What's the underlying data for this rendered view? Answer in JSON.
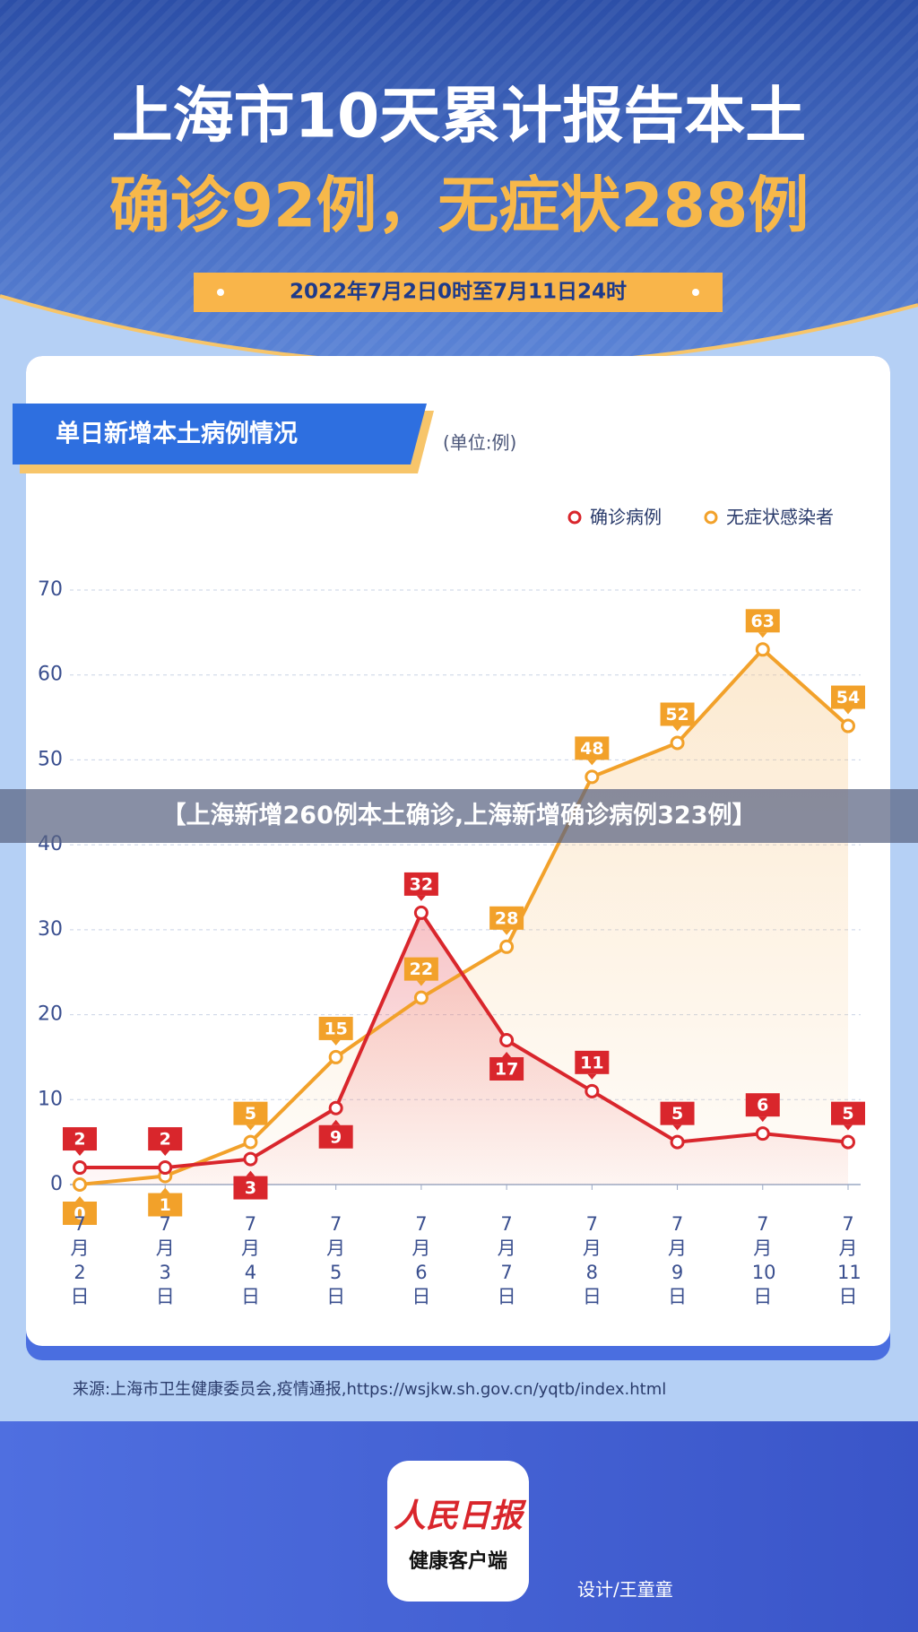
{
  "header": {
    "title_line1": "上海市10天累计报告本土",
    "title_line2": "确诊92例，无症状288例",
    "date_range": "2022年7月2日0时至7月11日24时"
  },
  "overlay_caption": "【上海新增260例本土确诊,上海新增确诊病例323例】",
  "chart_data": {
    "type": "line",
    "title": "单日新增本土病例情况",
    "unit": "(单位:例)",
    "categories": [
      "7月2日",
      "7月3日",
      "7月4日",
      "7月5日",
      "7月6日",
      "7月7日",
      "7月8日",
      "7月9日",
      "7月10日",
      "7月11日"
    ],
    "series": [
      {
        "name": "确诊病例",
        "color": "#d9262c",
        "values": [
          2,
          2,
          3,
          9,
          32,
          17,
          11,
          5,
          6,
          5
        ]
      },
      {
        "name": "无症状感染者",
        "color": "#f2a12a",
        "values": [
          0,
          1,
          5,
          15,
          22,
          28,
          48,
          52,
          63,
          54
        ]
      }
    ],
    "ylim": [
      0,
      70
    ],
    "yticks": [
      0,
      10,
      20,
      30,
      40,
      50,
      60,
      70
    ],
    "grid": true,
    "legend": "top-right"
  },
  "source": "来源:上海市卫生健康委员会,疫情通报,https://wsjkw.sh.gov.cn/yqtb/index.html",
  "logo": {
    "name": "人民日报",
    "subtitle": "健康客户端"
  },
  "credit": "设计/王童童"
}
